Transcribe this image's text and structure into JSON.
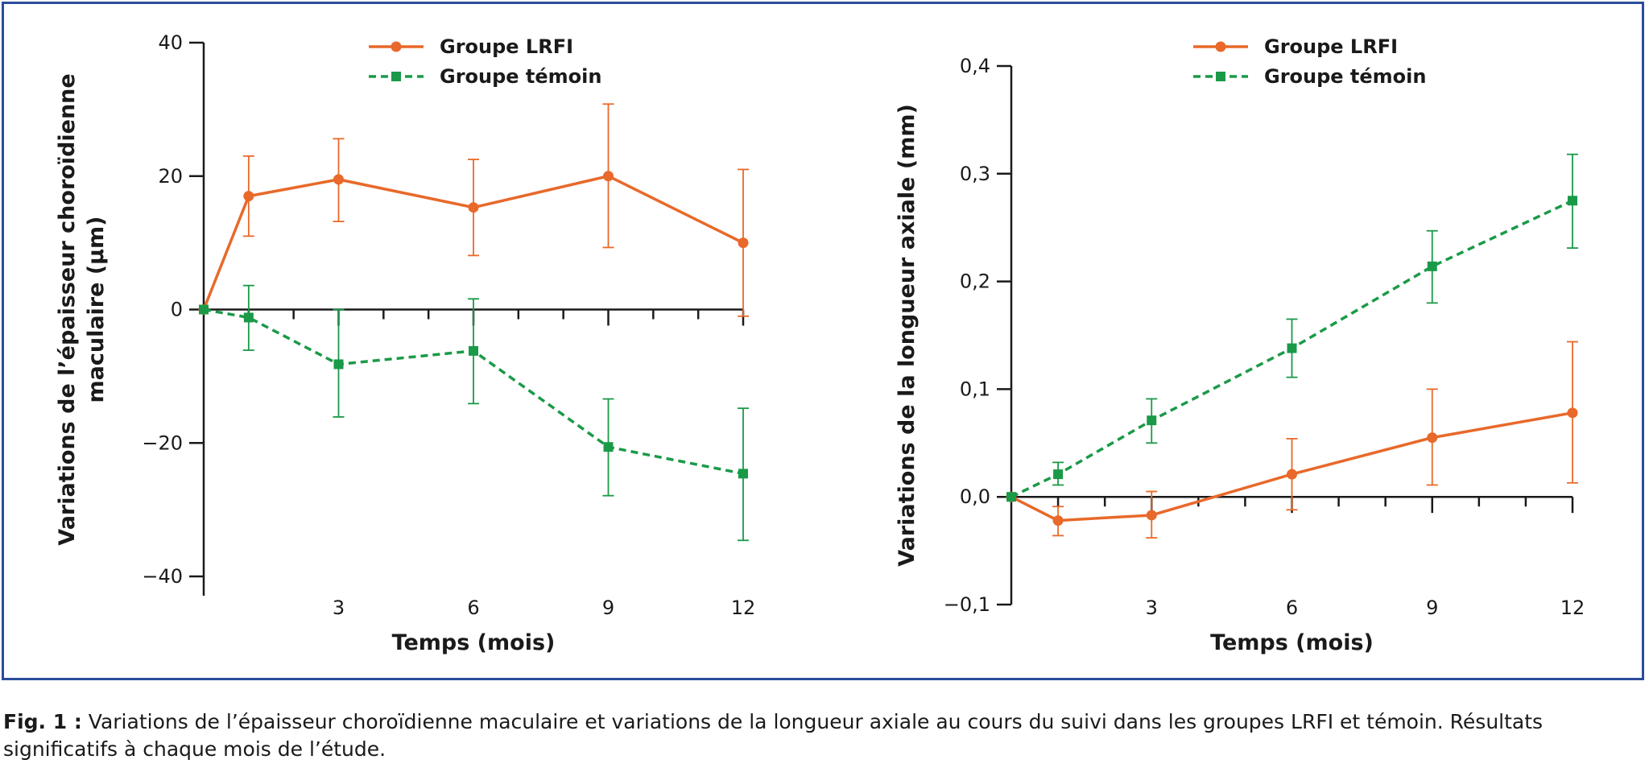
{
  "colors": {
    "frame": "#2b4c9b",
    "lrfi": "#e8692a",
    "temoin": "#1a9a48",
    "axis": "#1a1a1a"
  },
  "caption": {
    "label": "Fig. 1 :",
    "text": " Variations de l’épaisseur choroïdienne maculaire et variations de la longueur axiale au cours du suivi dans les groupes LRFI et témoin. Résultats significatifs à chaque mois de l’étude."
  },
  "chart_data": [
    {
      "type": "line",
      "xlabel": "Temps (mois)",
      "ylabel": "Variations de l’épaisseur choroïdienne maculaire (µm)",
      "xlim": [
        0,
        12
      ],
      "ylim": [
        -40,
        40
      ],
      "xticks": [
        3,
        6,
        9,
        12
      ],
      "xticklabels": [
        "3",
        "6",
        "9",
        "12"
      ],
      "yticks": [
        40,
        20,
        0,
        -20,
        -40
      ],
      "yticklabels": [
        "40",
        "20",
        "0",
        "−20",
        "−40"
      ],
      "legend": "top-center",
      "series": [
        {
          "name": "Groupe LRFI",
          "style": "solid",
          "marker": "circle",
          "x": [
            0,
            1,
            3,
            6,
            9,
            12
          ],
          "y": [
            0,
            17,
            19.5,
            15.3,
            20,
            10
          ],
          "err_low": [
            0,
            11,
            13.2,
            8.1,
            9.3,
            -1
          ],
          "err_high": [
            0,
            23,
            25.6,
            22.5,
            30.8,
            21
          ]
        },
        {
          "name": "Groupe témoin",
          "style": "dashed",
          "marker": "square",
          "x": [
            0,
            1,
            3,
            6,
            9,
            12
          ],
          "y": [
            0,
            -1.2,
            -8.2,
            -6.2,
            -20.6,
            -24.6
          ],
          "err_low": [
            0,
            -6.1,
            -16.1,
            -14.1,
            -27.9,
            -34.6
          ],
          "err_high": [
            0,
            3.6,
            0,
            1.6,
            -13.4,
            -14.8
          ]
        }
      ]
    },
    {
      "type": "line",
      "xlabel": "Temps (mois)",
      "ylabel": "Variations de la longueur axiale (mm)",
      "xlim": [
        0,
        12
      ],
      "ylim": [
        -0.1,
        0.4
      ],
      "xticks": [
        3,
        6,
        9,
        12
      ],
      "xticklabels": [
        "3",
        "6",
        "9",
        "12"
      ],
      "yticks": [
        0.4,
        0.3,
        0.2,
        0.1,
        0.0,
        -0.1
      ],
      "yticklabels": [
        "0,4",
        "0,3",
        "0,2",
        "0,1",
        "0,0",
        "−0,1"
      ],
      "legend": "top-center",
      "series": [
        {
          "name": "Groupe LRFI",
          "style": "solid",
          "marker": "circle",
          "x": [
            0,
            1,
            3,
            6,
            9,
            12
          ],
          "y": [
            0,
            -0.022,
            -0.017,
            0.021,
            0.055,
            0.078
          ],
          "err_low": [
            0,
            -0.036,
            -0.038,
            -0.012,
            0.011,
            0.013
          ],
          "err_high": [
            0,
            -0.009,
            0.005,
            0.054,
            0.1,
            0.144
          ]
        },
        {
          "name": "Groupe témoin",
          "style": "dashed",
          "marker": "square",
          "x": [
            0,
            1,
            3,
            6,
            9,
            12
          ],
          "y": [
            0,
            0.021,
            0.071,
            0.138,
            0.214,
            0.275
          ],
          "err_low": [
            0,
            0.011,
            0.05,
            0.111,
            0.18,
            0.231
          ],
          "err_high": [
            0,
            0.032,
            0.091,
            0.165,
            0.247,
            0.318
          ]
        }
      ]
    }
  ]
}
